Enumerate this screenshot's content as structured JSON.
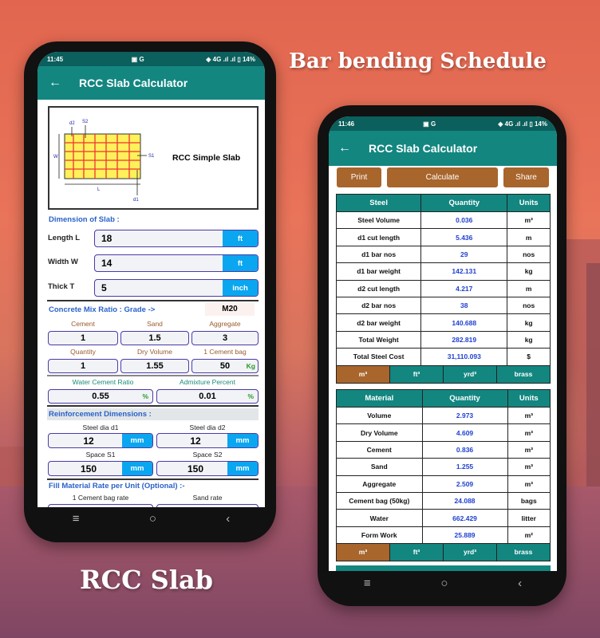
{
  "headlines": {
    "top": "Bar bending Schedule",
    "bottom": "RCC Slab"
  },
  "colors": {
    "teal": "#138680",
    "brown": "#a8652c",
    "input_unit": "#0aa6f0",
    "link_blue": "#2a62c9"
  },
  "left_phone": {
    "status": {
      "time": "11:45",
      "left_icons": "▣ G",
      "right_icons": "◈ 4G .ıl .ıl ▯ 14%"
    },
    "app_title": "RCC Slab Calculator",
    "diagram": {
      "title": "RCC Simple Slab",
      "labels": {
        "d2": "d2",
        "s2": "S2",
        "w": "W",
        "s1": "S1",
        "l": "L",
        "d1": "d1"
      }
    },
    "dimension_section": "Dimension of Slab :",
    "dimensions": [
      {
        "label": "Length L",
        "value": "18",
        "unit": "ft"
      },
      {
        "label": "Width W",
        "value": "14",
        "unit": "ft"
      },
      {
        "label": "Thick T",
        "value": "5",
        "unit": "inch"
      }
    ],
    "mix_section": "Concrete Mix Ratio : Grade ->",
    "grade": "M20",
    "mix_labels": [
      "Cement",
      "Sand",
      "Aggregate"
    ],
    "mix_values": [
      "1",
      "1.5",
      "3"
    ],
    "qty_labels": [
      "Quantity",
      "Dry Volume",
      "1 Cement bag"
    ],
    "qty_values": [
      "1",
      "1.55",
      "50"
    ],
    "cement_bag_unit": "Kg",
    "water_label": "Water Cement Ratio",
    "water_value": "0.55",
    "water_unit": "%",
    "admix_label": "Admixture Percent",
    "admix_value": "0.01",
    "admix_unit": "%",
    "reinf_section": "Reinforcement Dimensions :",
    "reinf": [
      {
        "label": "Steel dia d1",
        "value": "12",
        "unit": "mm"
      },
      {
        "label": "Steel dia d2",
        "value": "12",
        "unit": "mm"
      },
      {
        "label": "Space S1",
        "value": "150",
        "unit": "mm"
      },
      {
        "label": "Space S2",
        "value": "150",
        "unit": "mm"
      }
    ],
    "rate_section": "Fill Material Rate per Unit (Optional) :-",
    "rate_labels": [
      "1 Cement bag rate",
      "Sand rate"
    ],
    "nav": {
      "recent": "≡",
      "home": "○",
      "back": "‹"
    }
  },
  "right_phone": {
    "status": {
      "time": "11:46",
      "left_icons": "▣ G",
      "right_icons": "◈ 4G .ıl .ıl ▯ 14%"
    },
    "app_title": "RCC Slab Calculator",
    "buttons": {
      "print": "Print",
      "calculate": "Calculate",
      "share": "Share"
    },
    "steel_table": {
      "headers": [
        "Steel",
        "Quantity",
        "Units"
      ],
      "rows": [
        [
          "Steel Volume",
          "0.036",
          "m³"
        ],
        [
          "d1 cut length",
          "5.436",
          "m"
        ],
        [
          "d1 bar nos",
          "29",
          "nos"
        ],
        [
          "d1 bar weight",
          "142.131",
          "kg"
        ],
        [
          "d2 cut length",
          "4.217",
          "m"
        ],
        [
          "d2 bar nos",
          "38",
          "nos"
        ],
        [
          "d2 bar weight",
          "140.688",
          "kg"
        ],
        [
          "Total Weight",
          "282.819",
          "kg"
        ],
        [
          "Total Steel Cost",
          "31,110.093",
          "$"
        ]
      ],
      "unit_tabs": [
        "m³",
        "ft³",
        "yrd³",
        "brass"
      ],
      "selected_unit": 0
    },
    "material_table": {
      "headers": [
        "Material",
        "Quantity",
        "Units"
      ],
      "rows": [
        [
          "Volume",
          "2.973",
          "m³"
        ],
        [
          "Dry Volume",
          "4.609",
          "m³"
        ],
        [
          "Cement",
          "0.836",
          "m³"
        ],
        [
          "Sand",
          "1.255",
          "m³"
        ],
        [
          "Aggregate",
          "2.509",
          "m³"
        ],
        [
          "Cement bag (50kg)",
          "24.088",
          "bags"
        ],
        [
          "Water",
          "662.429",
          "litter"
        ],
        [
          "Form Work",
          "25.889",
          "m²"
        ]
      ],
      "unit_tabs": [
        "m³",
        "ft³",
        "yrd³",
        "brass"
      ],
      "selected_unit": 0
    },
    "nav": {
      "recent": "≡",
      "home": "○",
      "back": "‹"
    }
  }
}
